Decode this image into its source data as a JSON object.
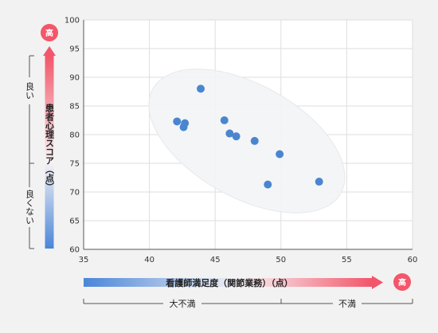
{
  "chart_data": {
    "type": "scatter",
    "xlim": [
      35,
      60
    ],
    "ylim": [
      60,
      100
    ],
    "x_ticks": [
      35,
      40,
      45,
      50,
      55,
      60
    ],
    "y_ticks": [
      60,
      65,
      70,
      75,
      80,
      85,
      90,
      95,
      100
    ],
    "grid": true,
    "points": [
      {
        "x": 43.9,
        "y": 88.0
      },
      {
        "x": 42.1,
        "y": 82.3
      },
      {
        "x": 42.7,
        "y": 82.0
      },
      {
        "x": 42.6,
        "y": 81.3
      },
      {
        "x": 45.7,
        "y": 82.5
      },
      {
        "x": 46.1,
        "y": 80.2
      },
      {
        "x": 46.6,
        "y": 79.7
      },
      {
        "x": 48.0,
        "y": 78.9
      },
      {
        "x": 49.9,
        "y": 76.6
      },
      {
        "x": 49.0,
        "y": 71.3
      },
      {
        "x": 52.9,
        "y": 71.8
      }
    ],
    "point_color": "#4a86d0"
  },
  "y_axis": {
    "label": "患者心理スコア（点）",
    "high_badge": "高",
    "good_label": "良い",
    "not_good_label": "良くない"
  },
  "x_axis": {
    "label": "看護師満足度（関節業務）（点）",
    "high_badge": "高",
    "very_dissatisfied_label": "大不満",
    "dissatisfied_label": "不満"
  },
  "colors": {
    "badge": "#f4566a",
    "arrow_red": "#f2566a",
    "arrow_blue": "#4a86d8",
    "grid": "#dedede",
    "ellipse": "#ffffff"
  }
}
